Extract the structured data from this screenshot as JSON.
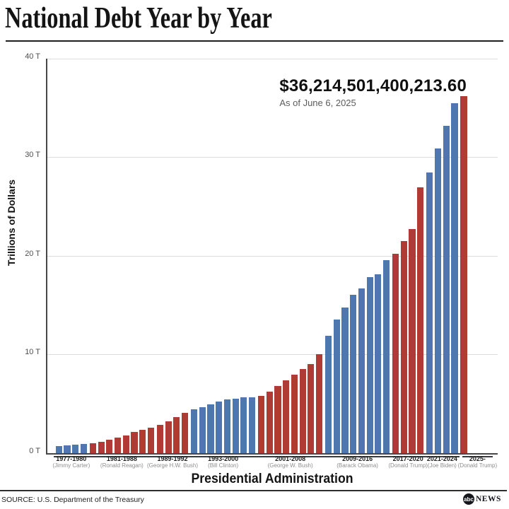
{
  "title": "National Debt Year by Year",
  "annotation": {
    "amount": "$36,214,501,400,213.60",
    "as_of": "As of June 6, 2025"
  },
  "chart_data": {
    "type": "bar",
    "title": "National Debt Year by Year",
    "ylabel": "Trillions of Dollars",
    "xlabel": "Presidential Administration",
    "ylim": [
      0,
      40
    ],
    "yticks": [
      "0 T",
      "10 T",
      "20 T",
      "30 T",
      "40 T"
    ],
    "grid": "horizontal",
    "colors": {
      "democrat": "#4d77ae",
      "republican": "#b03a34"
    },
    "groups": [
      {
        "label": "1977-1980",
        "president": "(Jimmy Carter)",
        "party": "democrat",
        "values": [
          0.699,
          0.772,
          0.827,
          0.908
        ]
      },
      {
        "label": "1981-1988",
        "president": "(Ronald Reagan)",
        "party": "republican",
        "values": [
          0.998,
          1.142,
          1.377,
          1.572,
          1.823,
          2.125,
          2.35,
          2.602
        ]
      },
      {
        "label": "1989-1992",
        "president": "(George H.W. Bush)",
        "party": "republican",
        "values": [
          2.857,
          3.233,
          3.665,
          4.065
        ]
      },
      {
        "label": "1993-2000",
        "president": "(Bill Clinton)",
        "party": "democrat",
        "values": [
          4.411,
          4.693,
          4.974,
          5.225,
          5.413,
          5.526,
          5.656,
          5.674
        ]
      },
      {
        "label": "2001-2008",
        "president": "(George W. Bush)",
        "party": "republican",
        "values": [
          5.807,
          6.228,
          6.783,
          7.379,
          7.933,
          8.507,
          9.008,
          10.025
        ]
      },
      {
        "label": "2009-2016",
        "president": "(Barack Obama)",
        "party": "democrat",
        "values": [
          11.91,
          13.562,
          14.79,
          16.066,
          16.738,
          17.824,
          18.151,
          19.573
        ]
      },
      {
        "label": "2017-2020",
        "president": "(Donald Trump)",
        "party": "republican",
        "values": [
          20.245,
          21.516,
          22.719,
          26.945
        ]
      },
      {
        "label": "2021-2024",
        "president": "(Joe Biden)",
        "party": "democrat",
        "values": [
          28.429,
          30.928,
          33.167,
          35.465
        ]
      },
      {
        "label": "2025-",
        "president": "(Donald Trump)",
        "party": "republican",
        "values": [
          36.215
        ]
      }
    ]
  },
  "footer": {
    "source": "SOURCE: U.S. Department of the Treasury",
    "logo_abc": "abc",
    "logo_news": "NEWS"
  }
}
